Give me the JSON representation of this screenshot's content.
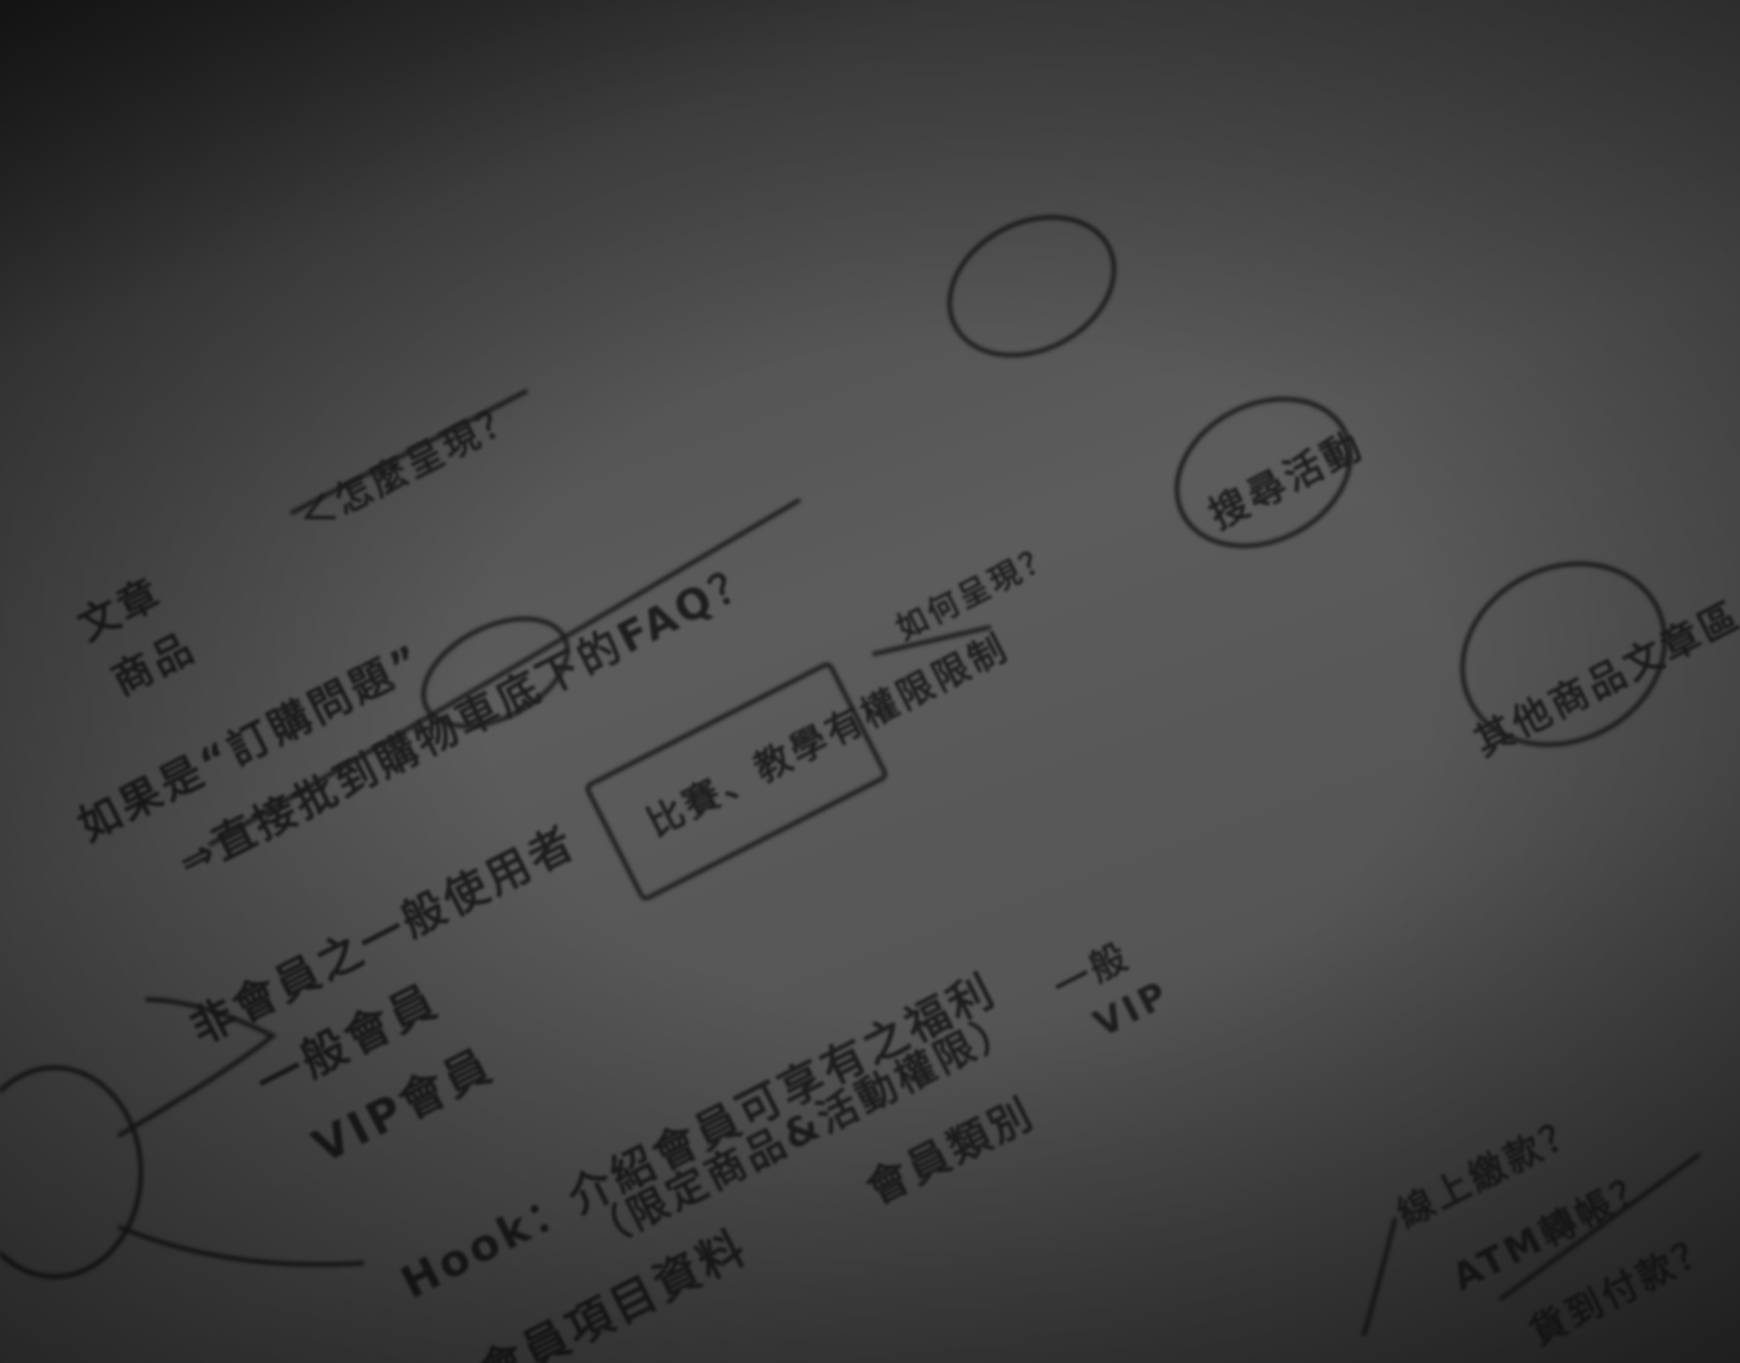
{
  "notes": [
    {
      "text": "如果是“訂購問題”"
    },
    {
      "text": "⇒直接批到購物車底下的FAQ？"
    },
    {
      "text": "非會員之一般使用者"
    },
    {
      "text": "一般會員"
    },
    {
      "text": "VIP會員"
    },
    {
      "text": "Hook：介紹會員可享有之福利"
    },
    {
      "text": "（限定商品&活動權限）"
    },
    {
      "text": "會員項目資料"
    },
    {
      "text": "會員類別"
    },
    {
      "text": "一般"
    },
    {
      "text": "VIP"
    },
    {
      "text": "比賽、教學有權限限制"
    },
    {
      "text": "如何呈現？"
    },
    {
      "text": "搜尋活動"
    },
    {
      "text": "其他商品文章區"
    },
    {
      "text": "線上繳款？"
    },
    {
      "text": "ATM轉帳？"
    },
    {
      "text": "貨到付款？"
    },
    {
      "text": "文章"
    },
    {
      "text": "商品"
    },
    {
      "text": "＜怎麼呈現？"
    }
  ]
}
